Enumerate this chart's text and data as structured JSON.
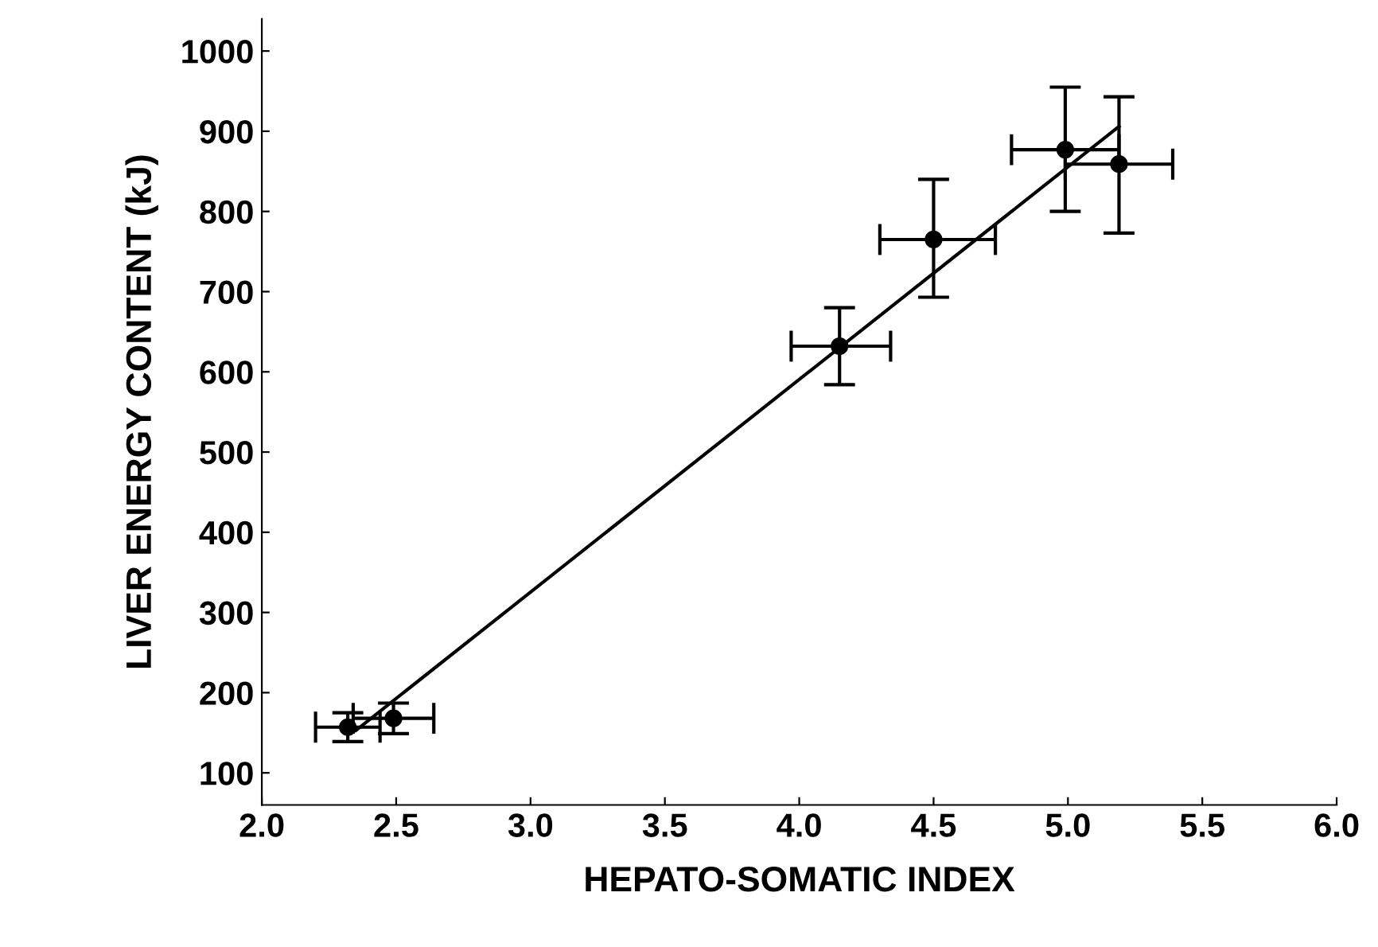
{
  "chart_data": {
    "type": "scatter",
    "xlabel": "HEPATO-SOMATIC INDEX",
    "ylabel": "LIVER ENERGY CONTENT (kJ)",
    "xlim": [
      2.0,
      6.0
    ],
    "xticks": [
      {
        "value": 2.0,
        "label": "2.0"
      },
      {
        "value": 2.5,
        "label": "2.5"
      },
      {
        "value": 3.0,
        "label": "3.0"
      },
      {
        "value": 3.5,
        "label": "3.5"
      },
      {
        "value": 4.0,
        "label": "4.0"
      },
      {
        "value": 4.5,
        "label": "4.5"
      },
      {
        "value": 5.0,
        "label": "5.0"
      },
      {
        "value": 5.5,
        "label": "5.5"
      },
      {
        "value": 6.0,
        "label": "6.0"
      }
    ],
    "ylim": [
      60,
      1040
    ],
    "yticks": [
      100,
      200,
      300,
      400,
      500,
      600,
      700,
      800,
      900,
      1000
    ],
    "marker": "circle",
    "grid": false,
    "series": [
      {
        "color": "#000000",
        "x": [
          2.32,
          2.49,
          4.15,
          4.5,
          4.99,
          5.19
        ],
        "values": [
          157,
          168,
          632,
          765,
          877,
          859
        ],
        "errors": [
          18,
          19,
          48,
          [
            693,
            840
          ],
          [
            800,
            955
          ],
          [
            773,
            943
          ]
        ],
        "xerrors": [
          0.12,
          0.15,
          [
            3.97,
            4.34
          ],
          [
            4.3,
            4.73
          ],
          [
            4.79,
            5.19
          ],
          0.2
        ]
      },
      {
        "type": "line",
        "color": "#000000",
        "x": [
          2.35,
          5.19
        ],
        "values": [
          153,
          906
        ],
        "marker": "none"
      }
    ]
  }
}
